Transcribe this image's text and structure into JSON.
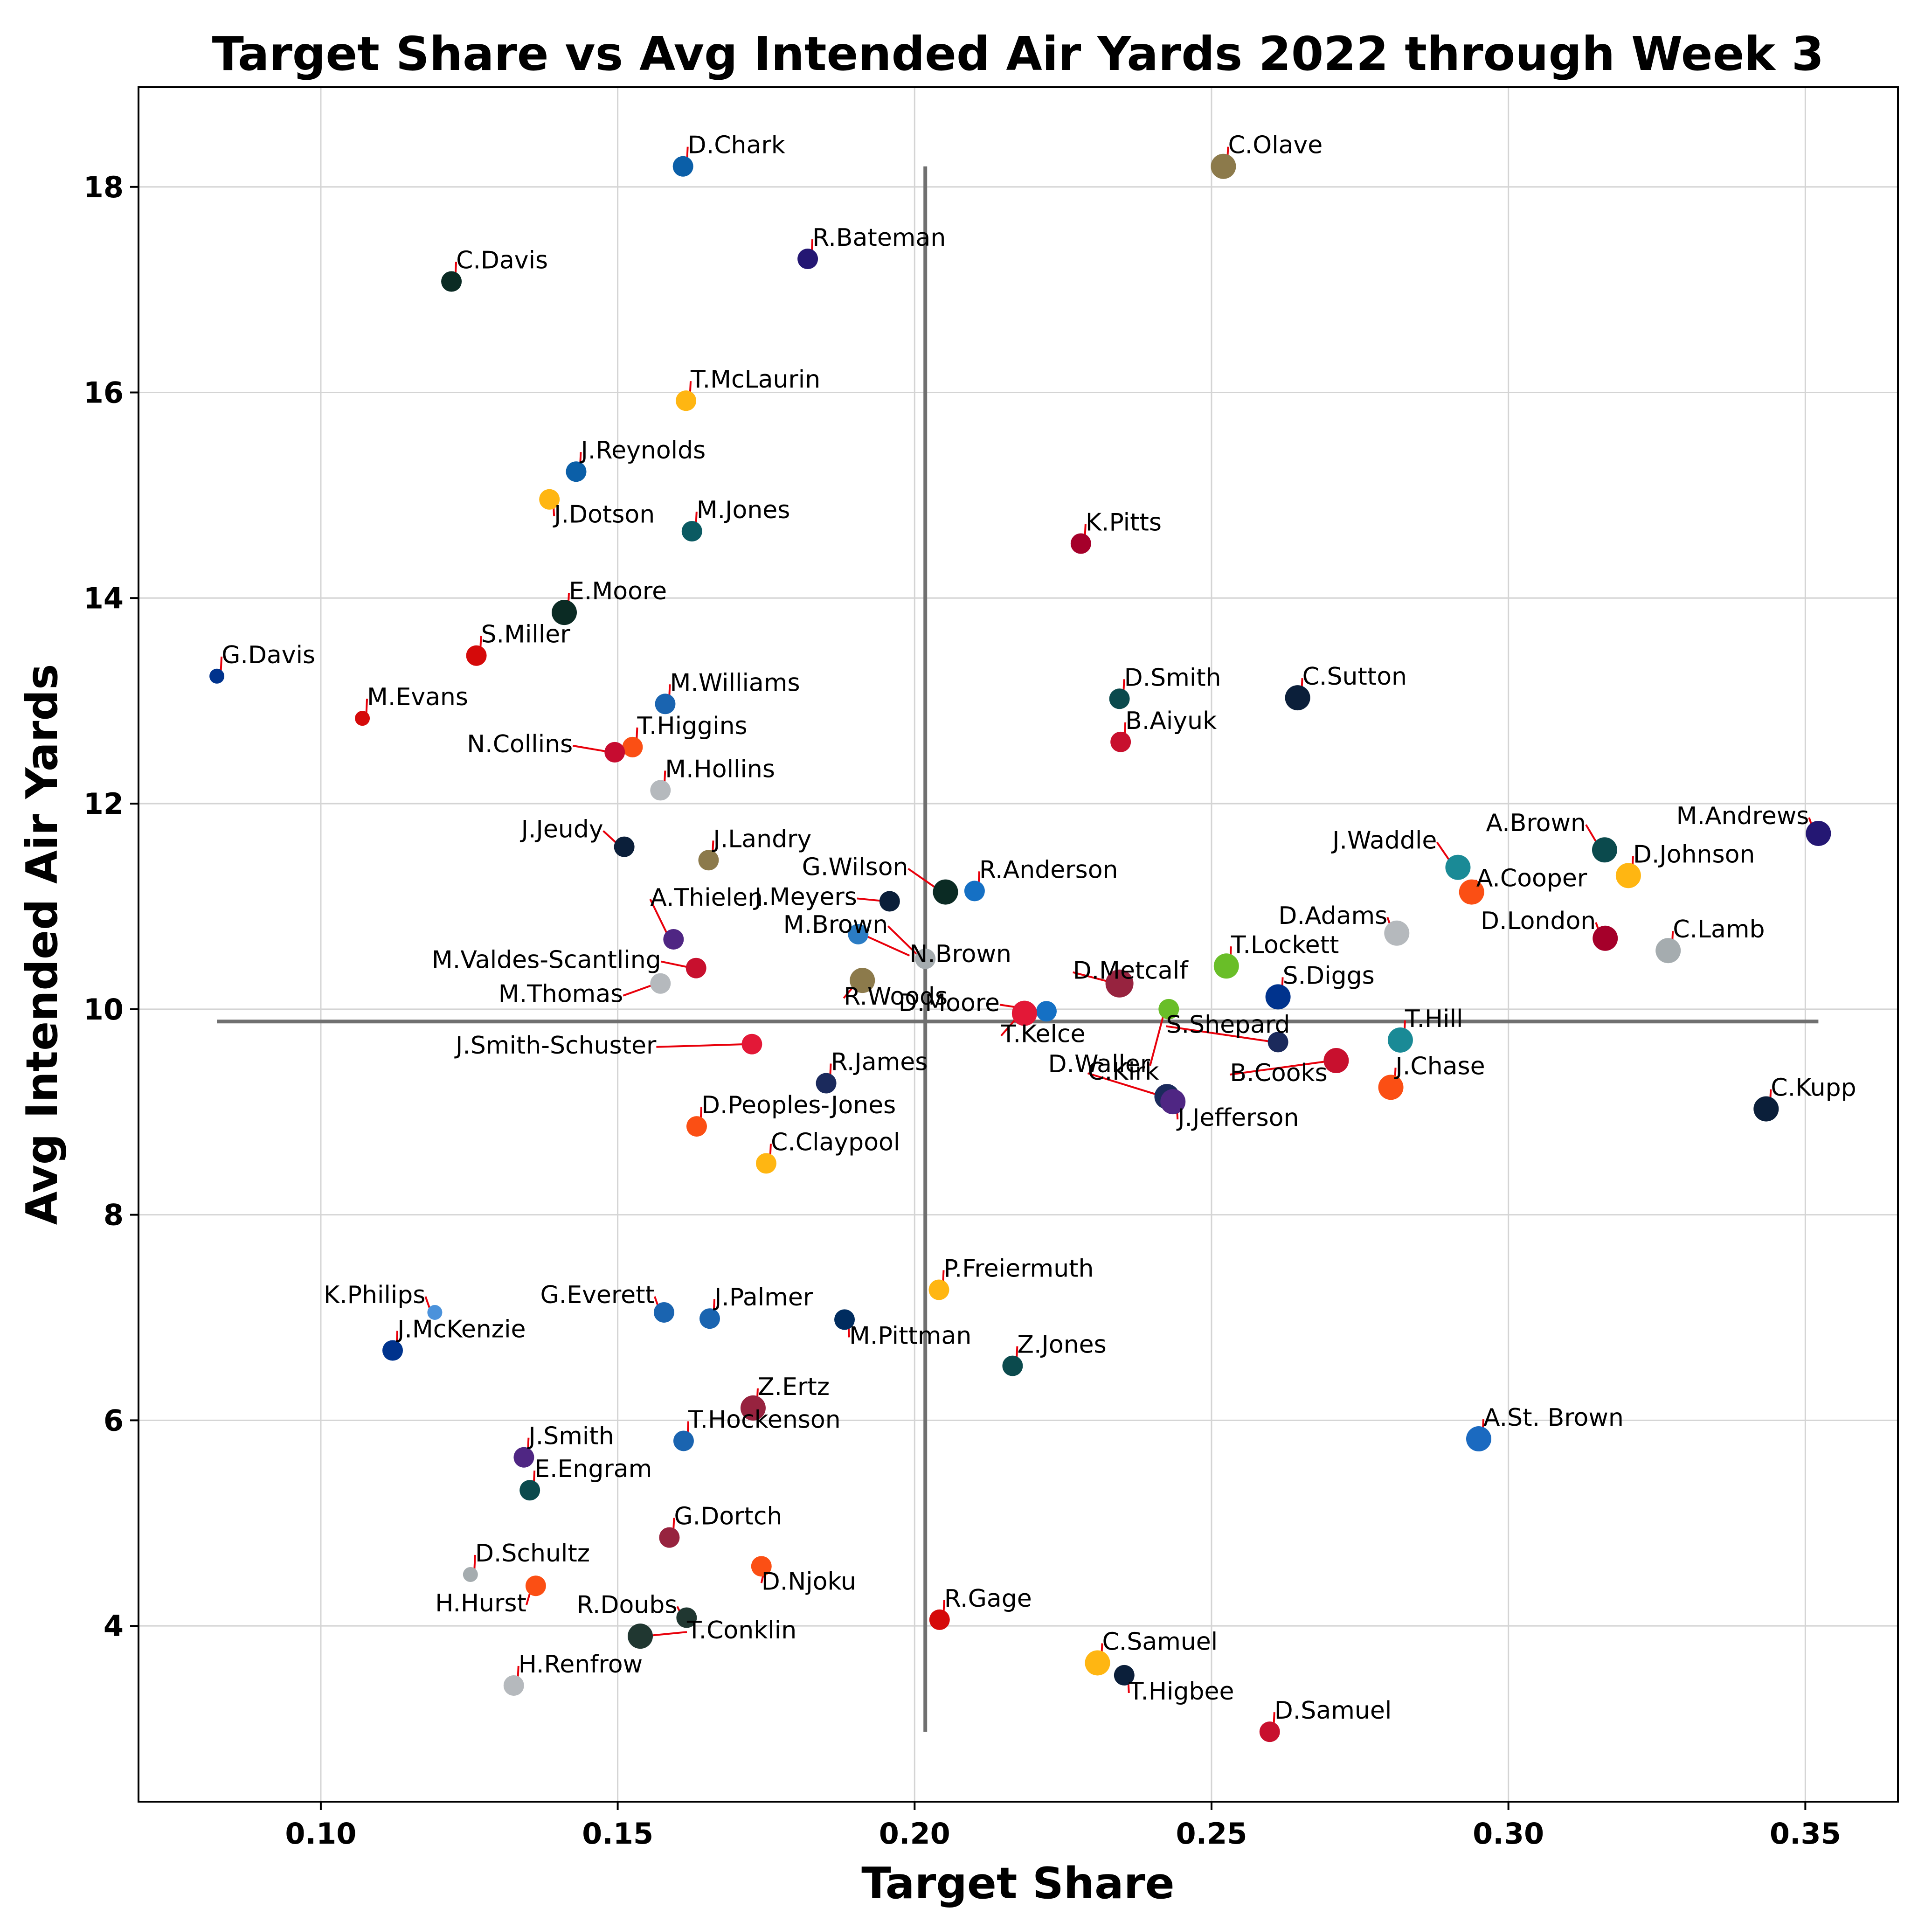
{
  "chart_data": {
    "type": "scatter",
    "title": "Target Share vs Avg Intended Air Yards 2022 through Week 3",
    "xlabel": "Target Share",
    "ylabel": "Avg Intended Air Yards",
    "xlim": [
      0.0693,
      0.3656
    ],
    "ylim": [
      2.29,
      18.97
    ],
    "xticks": [
      "0.10",
      "0.15",
      "0.20",
      "0.25",
      "0.30",
      "0.35"
    ],
    "yticks": [
      "4",
      "6",
      "8",
      "10",
      "12",
      "14",
      "16",
      "18"
    ],
    "grid": true,
    "reference_lines": {
      "avg_target_share": 0.2018,
      "avg_air_yards": 9.88
    },
    "points": [
      {
        "name": "D.Chark",
        "x": 0.161,
        "y": 18.2,
        "color": "#0b5fa8",
        "size": 1
      },
      {
        "name": "C.Olave",
        "x": 0.252,
        "y": 18.2,
        "color": "#8c7a4b",
        "size": 2
      },
      {
        "name": "R.Bateman",
        "x": 0.182,
        "y": 17.3,
        "color": "#241773",
        "size": 1
      },
      {
        "name": "C.Davis",
        "x": 0.122,
        "y": 17.08,
        "color": "#0b2b24",
        "size": 1
      },
      {
        "name": "T.McLaurin",
        "x": 0.1615,
        "y": 15.92,
        "color": "#ffb612",
        "size": 1
      },
      {
        "name": "J.Reynolds",
        "x": 0.143,
        "y": 15.23,
        "color": "#0b5fa8",
        "size": 1
      },
      {
        "name": "J.Dotson",
        "x": 0.1385,
        "y": 14.96,
        "color": "#ffb612",
        "size": 1
      },
      {
        "name": "M.Jones",
        "x": 0.1625,
        "y": 14.65,
        "color": "#0b5a62",
        "size": 1
      },
      {
        "name": "K.Pitts",
        "x": 0.228,
        "y": 14.53,
        "color": "#a5002a",
        "size": 1
      },
      {
        "name": "E.Moore",
        "x": 0.141,
        "y": 13.86,
        "color": "#0b2b24",
        "size": 2
      },
      {
        "name": "S.Miller",
        "x": 0.1262,
        "y": 13.44,
        "color": "#d50a0a",
        "size": 1
      },
      {
        "name": "G.Davis",
        "x": 0.0825,
        "y": 13.24,
        "color": "#00338d",
        "size": 0
      },
      {
        "name": "D.Smith",
        "x": 0.2345,
        "y": 13.02,
        "color": "#0b4a4d",
        "size": 1
      },
      {
        "name": "C.Sutton",
        "x": 0.2645,
        "y": 13.03,
        "color": "#0b1f3a",
        "size": 2
      },
      {
        "name": "M.Williams",
        "x": 0.158,
        "y": 12.97,
        "color": "#1a64b0",
        "size": 1
      },
      {
        "name": "M.Evans",
        "x": 0.107,
        "y": 12.83,
        "color": "#d50a0a",
        "size": 0
      },
      {
        "name": "B.Aiyuk",
        "x": 0.2347,
        "y": 12.6,
        "color": "#c8102e",
        "size": 1
      },
      {
        "name": "T.Higgins",
        "x": 0.1525,
        "y": 12.55,
        "color": "#fb4f14",
        "size": 1
      },
      {
        "name": "N.Collins",
        "x": 0.1495,
        "y": 12.5,
        "color": "#c60c30",
        "size": 1
      },
      {
        "name": "M.Hollins",
        "x": 0.1572,
        "y": 12.13,
        "color": "#b5b9bd",
        "size": 1
      },
      {
        "name": "M.Andrews",
        "x": 0.3522,
        "y": 11.71,
        "color": "#241773",
        "size": 2
      },
      {
        "name": "J.Jeudy",
        "x": 0.1511,
        "y": 11.58,
        "color": "#0b1f3a",
        "size": 1
      },
      {
        "name": "A.Brown",
        "x": 0.3162,
        "y": 11.55,
        "color": "#0b4a4d",
        "size": 2
      },
      {
        "name": "J.Landry",
        "x": 0.1653,
        "y": 11.45,
        "color": "#8c7a4b",
        "size": 1
      },
      {
        "name": "J.Waddle",
        "x": 0.2915,
        "y": 11.38,
        "color": "#1a8a96",
        "size": 2
      },
      {
        "name": "D.Johnson",
        "x": 0.3202,
        "y": 11.3,
        "color": "#ffb612",
        "size": 2
      },
      {
        "name": "G.Wilson",
        "x": 0.2052,
        "y": 11.14,
        "color": "#0b2b24",
        "size": 2
      },
      {
        "name": "R.Anderson",
        "x": 0.2101,
        "y": 11.15,
        "color": "#1570c4",
        "size": 1
      },
      {
        "name": "A.Cooper",
        "x": 0.2938,
        "y": 11.14,
        "color": "#fb4f14",
        "size": 2
      },
      {
        "name": "J.Meyers",
        "x": 0.1958,
        "y": 11.05,
        "color": "#0b1f3a",
        "size": 1
      },
      {
        "name": "D.Adams",
        "x": 0.2812,
        "y": 10.74,
        "color": "#b5b9bd",
        "size": 2
      },
      {
        "name": "N.Brown",
        "x": 0.1905,
        "y": 10.73,
        "color": "#2b7cc4",
        "size": 1
      },
      {
        "name": "D.London",
        "x": 0.3163,
        "y": 10.69,
        "color": "#a5002a",
        "size": 2
      },
      {
        "name": "A.Thielen",
        "x": 0.1594,
        "y": 10.68,
        "color": "#4f2683",
        "size": 1
      },
      {
        "name": "C.Lamb",
        "x": 0.3269,
        "y": 10.57,
        "color": "#a5acaf",
        "size": 2
      },
      {
        "name": "M.Brown",
        "x": 0.2018,
        "y": 10.49,
        "color": "#a5acaf",
        "size": 1
      },
      {
        "name": "T.Lockett",
        "x": 0.2525,
        "y": 10.42,
        "color": "#69be28",
        "size": 2
      },
      {
        "name": "M.Valdes-Scantling",
        "x": 0.1632,
        "y": 10.4,
        "color": "#c8102e",
        "size": 1
      },
      {
        "name": "R.Woods",
        "x": 0.1912,
        "y": 10.28,
        "color": "#8c7a4b",
        "size": 2
      },
      {
        "name": "M.Thomas",
        "x": 0.1572,
        "y": 10.25,
        "color": "#b5b9bd",
        "size": 1
      },
      {
        "name": "D.Metcalf",
        "x": 0.2345,
        "y": 10.25,
        "color": "#97233f",
        "size": 3
      },
      {
        "name": "S.Diggs",
        "x": 0.2612,
        "y": 10.12,
        "color": "#00338d",
        "size": 2
      },
      {
        "name": "D.Waller",
        "x": 0.2428,
        "y": 10.0,
        "color": "#69be28",
        "size": 1
      },
      {
        "name": "D.Moore",
        "x": 0.2222,
        "y": 9.98,
        "color": "#1570c4",
        "size": 1
      },
      {
        "name": "T.Kelce",
        "x": 0.2185,
        "y": 9.96,
        "color": "#e31837",
        "size": 2
      },
      {
        "name": "T.Hill",
        "x": 0.2818,
        "y": 9.7,
        "color": "#1a8a96",
        "size": 2
      },
      {
        "name": "S.Shepard",
        "x": 0.2612,
        "y": 9.68,
        "color": "#1b2a5c",
        "size": 1
      },
      {
        "name": "J.Smith-Schuster",
        "x": 0.1726,
        "y": 9.66,
        "color": "#e31837",
        "size": 1
      },
      {
        "name": "B.Cooks",
        "x": 0.271,
        "y": 9.5,
        "color": "#c8102e",
        "size": 2
      },
      {
        "name": "R.James",
        "x": 0.1851,
        "y": 9.28,
        "color": "#1b2a5c",
        "size": 1
      },
      {
        "name": "J.Chase",
        "x": 0.2802,
        "y": 9.24,
        "color": "#fb4f14",
        "size": 2
      },
      {
        "name": "C.Kirk",
        "x": 0.2425,
        "y": 9.15,
        "color": "#1b2a5c",
        "size": 2
      },
      {
        "name": "J.Jefferson",
        "x": 0.2435,
        "y": 9.1,
        "color": "#4f2683",
        "size": 2
      },
      {
        "name": "C.Kupp",
        "x": 0.3434,
        "y": 9.03,
        "color": "#0b1f3a",
        "size": 2
      },
      {
        "name": "D.Peoples-Jones",
        "x": 0.1633,
        "y": 8.86,
        "color": "#fb4f14",
        "size": 1
      },
      {
        "name": "C.Claypool",
        "x": 0.175,
        "y": 8.5,
        "color": "#ffb612",
        "size": 1
      },
      {
        "name": "P.Freiermuth",
        "x": 0.2041,
        "y": 7.27,
        "color": "#ffb612",
        "size": 1
      },
      {
        "name": "K.Philips",
        "x": 0.1192,
        "y": 7.05,
        "color": "#4b92db",
        "size": 0
      },
      {
        "name": "G.Everett",
        "x": 0.1578,
        "y": 7.05,
        "color": "#1a64b0",
        "size": 1
      },
      {
        "name": "J.Palmer",
        "x": 0.1655,
        "y": 6.99,
        "color": "#1a64b0",
        "size": 1
      },
      {
        "name": "M.Pittman",
        "x": 0.1882,
        "y": 6.98,
        "color": "#002c5f",
        "size": 1
      },
      {
        "name": "J.McKenzie",
        "x": 0.1121,
        "y": 6.68,
        "color": "#00338d",
        "size": 1
      },
      {
        "name": "Z.Jones",
        "x": 0.2165,
        "y": 6.53,
        "color": "#0b4a4d",
        "size": 1
      },
      {
        "name": "Z.Ertz",
        "x": 0.1728,
        "y": 6.12,
        "color": "#97233f",
        "size": 2
      },
      {
        "name": "A.St. Brown",
        "x": 0.295,
        "y": 5.82,
        "color": "#1b6ac0",
        "size": 2
      },
      {
        "name": "T.Hockenson",
        "x": 0.1611,
        "y": 5.8,
        "color": "#1a64b0",
        "size": 1
      },
      {
        "name": "J.Smith",
        "x": 0.1342,
        "y": 5.64,
        "color": "#4f2683",
        "size": 1
      },
      {
        "name": "E.Engram",
        "x": 0.1352,
        "y": 5.32,
        "color": "#0b4a4d",
        "size": 1
      },
      {
        "name": "G.Dortch",
        "x": 0.1587,
        "y": 4.86,
        "color": "#97233f",
        "size": 1
      },
      {
        "name": "D.Njoku",
        "x": 0.1742,
        "y": 4.58,
        "color": "#fb4f14",
        "size": 1
      },
      {
        "name": "D.Schultz",
        "x": 0.1252,
        "y": 4.5,
        "color": "#a5acaf",
        "size": 0
      },
      {
        "name": "H.Hurst",
        "x": 0.1362,
        "y": 4.39,
        "color": "#fb4f14",
        "size": 1
      },
      {
        "name": "R.Doubs",
        "x": 0.1616,
        "y": 4.08,
        "color": "#203731",
        "size": 1
      },
      {
        "name": "R.Gage",
        "x": 0.2042,
        "y": 4.06,
        "color": "#d50a0a",
        "size": 1
      },
      {
        "name": "T.Conklin",
        "x": 0.1538,
        "y": 3.9,
        "color": "#203731",
        "size": 2
      },
      {
        "name": "C.Samuel",
        "x": 0.2308,
        "y": 3.64,
        "color": "#ffb612",
        "size": 2
      },
      {
        "name": "T.Higbee",
        "x": 0.2353,
        "y": 3.52,
        "color": "#0b1f3a",
        "size": 1
      },
      {
        "name": "H.Renfrow",
        "x": 0.1325,
        "y": 3.42,
        "color": "#b5b9bd",
        "size": 1
      },
      {
        "name": "D.Samuel",
        "x": 0.2598,
        "y": 2.97,
        "color": "#c8102e",
        "size": 1
      }
    ]
  }
}
